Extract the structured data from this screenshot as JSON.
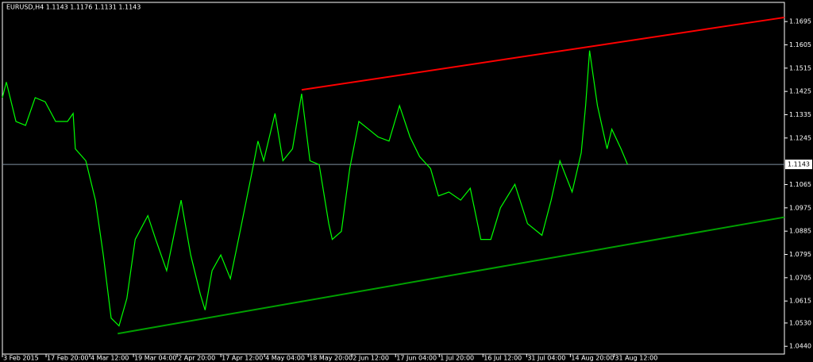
{
  "chart_data": {
    "type": "line",
    "title": "EURUSD,H4  1.1143 1.1176 1.1131 1.1143",
    "background": "#000000",
    "x": [
      0,
      0.09,
      0.31,
      0.53,
      0.75,
      0.98,
      1.22,
      1.49,
      1.62,
      1.67,
      1.91,
      2.13,
      2.31,
      2.49,
      2.67,
      2.85,
      3.04,
      3.33,
      3.51,
      3.76,
      3.98,
      4.09,
      4.31,
      4.53,
      4.64,
      4.8,
      5.0,
      5.22,
      5.44,
      5.73,
      5.85,
      5.98,
      6.24,
      6.42,
      6.64,
      6.85,
      7.04,
      7.25,
      7.47,
      7.55,
      7.76,
      7.95,
      8.16,
      8.38,
      8.6,
      8.85,
      9.09,
      9.33,
      9.55,
      9.8,
      9.98,
      10.22,
      10.49,
      10.71,
      10.95,
      11.18,
      11.4,
      11.73,
      12.02,
      12.35,
      12.56,
      12.76,
      13.04,
      13.25,
      13.35,
      13.44,
      13.62,
      13.84,
      13.95,
      14.16,
      14.31
    ],
    "series": [
      {
        "color": "#00ff00",
        "values": [
          1.1401,
          1.1461,
          1.1309,
          1.1294,
          1.1401,
          1.1385,
          1.1309,
          1.1309,
          1.134,
          1.1203,
          1.1157,
          1.1005,
          1.0793,
          1.0549,
          1.0519,
          1.0625,
          1.0853,
          1.0945,
          1.0853,
          1.0732,
          1.0914,
          1.1005,
          1.0793,
          1.0641,
          1.058,
          1.0732,
          1.0793,
          1.0701,
          1.0884,
          1.1127,
          1.1233,
          1.1157,
          1.134,
          1.1157,
          1.1203,
          1.1416,
          1.1157,
          1.1142,
          1.0914,
          1.0853,
          1.0884,
          1.1127,
          1.1309,
          1.1279,
          1.1249,
          1.1233,
          1.137,
          1.1249,
          1.1173,
          1.1127,
          1.1021,
          1.1036,
          1.1005,
          1.1051,
          1.0853,
          1.0853,
          1.0975,
          1.1066,
          1.0914,
          1.0869,
          1.1005,
          1.1157,
          1.1036,
          1.1188,
          1.137,
          1.1583,
          1.137,
          1.1203,
          1.1279,
          1.1203,
          1.1143
        ]
      }
    ],
    "trendlines": [
      {
        "color": "#ff0000",
        "x": [
          6.85,
          17.9
        ],
        "values": [
          1.1431,
          1.1711
        ]
      },
      {
        "color": "#00a000",
        "x": [
          2.64,
          17.9
        ],
        "values": [
          1.0489,
          1.0939
        ]
      }
    ],
    "current_price": {
      "value": 1.1143,
      "label": "1.1143",
      "color": "#7f8f9f"
    },
    "xlim": [
      0,
      17.9
    ],
    "xticks": [
      {
        "value": 0,
        "label": "3 Feb 2015"
      },
      {
        "value": 1,
        "label": "17 Feb 20:00"
      },
      {
        "value": 2,
        "label": "4 Mar 12:00"
      },
      {
        "value": 3,
        "label": "19 Mar 04:00"
      },
      {
        "value": 4,
        "label": "2 Apr 20:00"
      },
      {
        "value": 5,
        "label": "17 Apr 12:00"
      },
      {
        "value": 6,
        "label": "4 May 04:00"
      },
      {
        "value": 7,
        "label": "18 May 20:00"
      },
      {
        "value": 8,
        "label": "2 Jun 12:00"
      },
      {
        "value": 9,
        "label": "17 Jun 04:00"
      },
      {
        "value": 10,
        "label": "1 Jul 20:00"
      },
      {
        "value": 11,
        "label": "16 Jul 12:00"
      },
      {
        "value": 12,
        "label": "31 Jul 04:00"
      },
      {
        "value": 13,
        "label": "14 Aug 20:00"
      },
      {
        "value": 14,
        "label": "31 Aug 12:00"
      }
    ],
    "ylim": [
      1.041,
      1.1766
    ],
    "yticks": [
      {
        "value": 1.044,
        "label": "1.0440"
      },
      {
        "value": 1.053,
        "label": "1.0530"
      },
      1.0615,
      1.0705,
      1.0795,
      1.0885,
      1.0975,
      1.1065,
      1.1245,
      1.1335,
      1.1425,
      1.1515,
      1.1605,
      1.1695
    ]
  }
}
